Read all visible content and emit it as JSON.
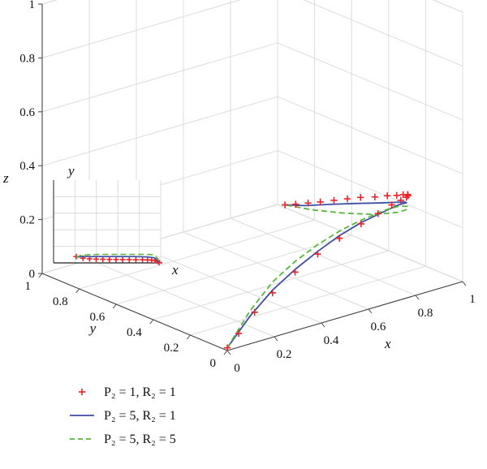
{
  "chart_data": {
    "type": "line",
    "projection": "3d",
    "axes": {
      "x": {
        "label": "x",
        "range": [
          0,
          1
        ],
        "ticks": [
          "0",
          "0.2",
          "0.4",
          "0.6",
          "0.8",
          "1"
        ]
      },
      "y": {
        "label": "y",
        "range": [
          0,
          1
        ],
        "ticks": [
          "0",
          "0.2",
          "0.4",
          "0.6",
          "0.8",
          "1"
        ]
      },
      "z": {
        "label": "z",
        "range": [
          0,
          1
        ],
        "ticks": [
          "0",
          "0.2",
          "0.4",
          "0.6",
          "0.8",
          "1"
        ]
      }
    },
    "grid": true,
    "legend": {
      "placement": "bottom-left"
    },
    "series": [
      {
        "label": "P₂ = 1, R₂ = 1",
        "style": "marker-plus",
        "color": "#e8232a",
        "points": [
          [
            0.0,
            0.0,
            0.01
          ],
          [
            0.05,
            0.002,
            0.05
          ],
          [
            0.12,
            0.005,
            0.11
          ],
          [
            0.2,
            0.01,
            0.16
          ],
          [
            0.3,
            0.015,
            0.21
          ],
          [
            0.4,
            0.02,
            0.25
          ],
          [
            0.5,
            0.03,
            0.28
          ],
          [
            0.6,
            0.04,
            0.305
          ],
          [
            0.68,
            0.05,
            0.32
          ],
          [
            0.75,
            0.065,
            0.33
          ],
          [
            0.8,
            0.08,
            0.33
          ],
          [
            0.84,
            0.1,
            0.325
          ],
          [
            0.87,
            0.13,
            0.315
          ],
          [
            0.9,
            0.17,
            0.3
          ],
          [
            0.92,
            0.22,
            0.28
          ],
          [
            0.94,
            0.28,
            0.255
          ],
          [
            0.955,
            0.35,
            0.23
          ],
          [
            0.965,
            0.43,
            0.2
          ],
          [
            0.975,
            0.52,
            0.17
          ],
          [
            0.982,
            0.6,
            0.14
          ],
          [
            0.988,
            0.68,
            0.11
          ],
          [
            0.993,
            0.76,
            0.08
          ],
          [
            0.996,
            0.83,
            0.055
          ],
          [
            0.998,
            0.9,
            0.03
          ],
          [
            1.0,
            0.96,
            0.01
          ]
        ]
      },
      {
        "label": "P₂ = 5, R₂ = 1",
        "style": "solid",
        "color": "#3f4fa6",
        "points": [
          [
            0.0,
            0.0,
            0.01
          ],
          [
            0.1,
            0.005,
            0.1
          ],
          [
            0.2,
            0.01,
            0.17
          ],
          [
            0.3,
            0.015,
            0.22
          ],
          [
            0.4,
            0.02,
            0.26
          ],
          [
            0.5,
            0.03,
            0.29
          ],
          [
            0.6,
            0.04,
            0.31
          ],
          [
            0.7,
            0.05,
            0.32
          ],
          [
            0.78,
            0.07,
            0.32
          ],
          [
            0.84,
            0.1,
            0.305
          ],
          [
            0.88,
            0.16,
            0.28
          ],
          [
            0.92,
            0.26,
            0.24
          ],
          [
            0.95,
            0.4,
            0.19
          ],
          [
            0.97,
            0.55,
            0.14
          ],
          [
            0.985,
            0.7,
            0.09
          ],
          [
            0.995,
            0.85,
            0.04
          ],
          [
            1.0,
            0.96,
            0.01
          ]
        ]
      },
      {
        "label": "P₂ = 5, R₂ = 5",
        "style": "dashed",
        "color": "#58b63c",
        "points": [
          [
            0.0,
            0.0,
            0.01
          ],
          [
            0.1,
            0.005,
            0.12
          ],
          [
            0.2,
            0.01,
            0.2
          ],
          [
            0.3,
            0.015,
            0.25
          ],
          [
            0.4,
            0.02,
            0.285
          ],
          [
            0.5,
            0.025,
            0.31
          ],
          [
            0.6,
            0.03,
            0.325
          ],
          [
            0.7,
            0.04,
            0.33
          ],
          [
            0.77,
            0.05,
            0.325
          ],
          [
            0.82,
            0.07,
            0.305
          ],
          [
            0.86,
            0.12,
            0.27
          ],
          [
            0.9,
            0.22,
            0.22
          ],
          [
            0.94,
            0.4,
            0.15
          ],
          [
            0.97,
            0.6,
            0.09
          ],
          [
            0.99,
            0.8,
            0.04
          ],
          [
            1.0,
            0.96,
            0.01
          ]
        ]
      }
    ],
    "inset": {
      "axes": {
        "x": {
          "label": "x"
        },
        "y": {
          "label": "y"
        }
      },
      "grid": true,
      "series": [
        {
          "label": "P₂ = 1, R₂ = 1",
          "style": "marker-plus",
          "color": "#e8232a",
          "x": [
            0.0,
            0.08,
            0.16,
            0.24,
            0.32,
            0.4,
            0.48,
            0.56,
            0.64,
            0.72,
            0.8,
            0.86,
            0.91,
            0.95,
            0.98,
            1.0
          ],
          "y": [
            0.2,
            0.15,
            0.13,
            0.12,
            0.115,
            0.11,
            0.11,
            0.105,
            0.105,
            0.1,
            0.1,
            0.095,
            0.09,
            0.08,
            0.05,
            0.01
          ]
        },
        {
          "label": "P₂ = 5, R₂ = 1",
          "style": "solid",
          "color": "#3f4fa6",
          "x": [
            0.0,
            0.05,
            0.15,
            0.3,
            0.5,
            0.7,
            0.85,
            0.93,
            0.97,
            1.0
          ],
          "y": [
            0.17,
            0.2,
            0.2,
            0.2,
            0.2,
            0.2,
            0.19,
            0.17,
            0.12,
            0.01
          ]
        },
        {
          "label": "P₂ = 5, R₂ = 5",
          "style": "dashed",
          "color": "#58b63c",
          "x": [
            0.0,
            0.05,
            0.15,
            0.3,
            0.5,
            0.7,
            0.85,
            0.92,
            0.96,
            0.99,
            1.0
          ],
          "y": [
            0.17,
            0.24,
            0.26,
            0.27,
            0.27,
            0.27,
            0.27,
            0.26,
            0.22,
            0.1,
            0.01
          ]
        }
      ]
    }
  }
}
